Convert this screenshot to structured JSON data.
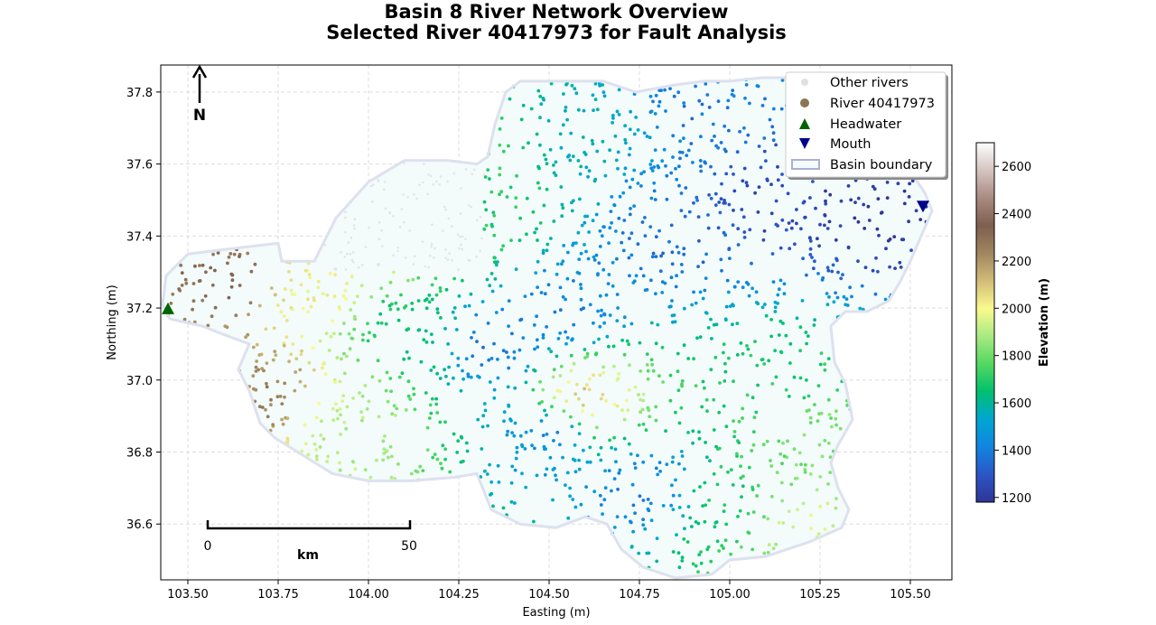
{
  "chart_data": {
    "type": "scatter",
    "title_line1": "Basin 8 River Network Overview",
    "title_line2": "Selected River 40417973 for Fault Analysis",
    "xlabel": "Easting (m)",
    "ylabel": "Northing (m)",
    "xlim": [
      103.425,
      105.615
    ],
    "ylim": [
      36.445,
      37.875
    ],
    "xticks": [
      103.5,
      103.75,
      104.0,
      104.25,
      104.5,
      104.75,
      105.0,
      105.25,
      105.5
    ],
    "xtick_labels": [
      "103.50",
      "103.75",
      "104.00",
      "104.25",
      "104.50",
      "104.75",
      "105.00",
      "105.25",
      "105.50"
    ],
    "yticks": [
      36.6,
      36.8,
      37.0,
      37.2,
      37.4,
      37.6,
      37.8
    ],
    "ytick_labels": [
      "36.6",
      "36.8",
      "37.0",
      "37.2",
      "37.4",
      "37.6",
      "37.8"
    ],
    "grid": true,
    "legend_position": "top-right",
    "legend": {
      "other_rivers": "Other rivers",
      "selected_river": "River 40417973",
      "headwater": "Headwater",
      "mouth": "Mouth",
      "basin_boundary": "Basin boundary"
    },
    "colorbar": {
      "label": "Elevation (m)",
      "range": [
        1180,
        2700
      ],
      "ticks": [
        1200,
        1400,
        1600,
        1800,
        2000,
        2200,
        2400,
        2600
      ],
      "tick_labels": [
        "1200",
        "1400",
        "1600",
        "1800",
        "2000",
        "2200",
        "2400",
        "2600"
      ],
      "colors": [
        "#2f3595",
        "#2b56c6",
        "#1185e0",
        "#00a6d1",
        "#00c06e",
        "#54d860",
        "#a8ea82",
        "#fafa8e",
        "#d2bc78",
        "#a08660",
        "#7f5e50",
        "#a98a80",
        "#d4c4c0",
        "#fefefe"
      ]
    },
    "north_arrow_label": "N",
    "scale_bar": {
      "start_label": "0",
      "end_label": "50",
      "unit_label": "km"
    },
    "headwater": {
      "x": 103.445,
      "y": 37.198
    },
    "mouth": {
      "x": 105.535,
      "y": 37.483
    },
    "basin_boundary": [
      [
        103.43,
        37.21
      ],
      [
        103.44,
        37.29
      ],
      [
        103.5,
        37.35
      ],
      [
        103.58,
        37.36
      ],
      [
        103.75,
        37.38
      ],
      [
        103.76,
        37.33
      ],
      [
        103.85,
        37.33
      ],
      [
        103.91,
        37.45
      ],
      [
        104.0,
        37.55
      ],
      [
        104.1,
        37.61
      ],
      [
        104.22,
        37.61
      ],
      [
        104.3,
        37.6
      ],
      [
        104.33,
        37.62
      ],
      [
        104.35,
        37.71
      ],
      [
        104.38,
        37.8
      ],
      [
        104.42,
        37.83
      ],
      [
        104.48,
        37.83
      ],
      [
        104.57,
        37.83
      ],
      [
        104.65,
        37.83
      ],
      [
        104.74,
        37.8
      ],
      [
        104.85,
        37.82
      ],
      [
        104.93,
        37.83
      ],
      [
        105.0,
        37.83
      ],
      [
        105.09,
        37.84
      ],
      [
        105.18,
        37.84
      ],
      [
        105.3,
        37.8
      ],
      [
        105.35,
        37.74
      ],
      [
        105.4,
        37.66
      ],
      [
        105.43,
        37.6
      ],
      [
        105.5,
        37.58
      ],
      [
        105.54,
        37.52
      ],
      [
        105.56,
        37.47
      ],
      [
        105.53,
        37.4
      ],
      [
        105.5,
        37.33
      ],
      [
        105.47,
        37.27
      ],
      [
        105.44,
        37.22
      ],
      [
        105.38,
        37.19
      ],
      [
        105.32,
        37.19
      ],
      [
        105.28,
        37.15
      ],
      [
        105.29,
        37.05
      ],
      [
        105.32,
        36.99
      ],
      [
        105.34,
        36.89
      ],
      [
        105.3,
        36.82
      ],
      [
        105.28,
        36.77
      ],
      [
        105.3,
        36.7
      ],
      [
        105.33,
        36.64
      ],
      [
        105.31,
        36.59
      ],
      [
        105.22,
        36.55
      ],
      [
        105.1,
        36.51
      ],
      [
        105.0,
        36.5
      ],
      [
        104.95,
        36.46
      ],
      [
        104.85,
        36.45
      ],
      [
        104.76,
        36.48
      ],
      [
        104.7,
        36.53
      ],
      [
        104.66,
        36.6
      ],
      [
        104.6,
        36.62
      ],
      [
        104.52,
        36.59
      ],
      [
        104.42,
        36.6
      ],
      [
        104.34,
        36.64
      ],
      [
        104.3,
        36.74
      ],
      [
        104.24,
        36.73
      ],
      [
        104.12,
        36.72
      ],
      [
        104.0,
        36.72
      ],
      [
        103.9,
        36.74
      ],
      [
        103.82,
        36.79
      ],
      [
        103.74,
        36.84
      ],
      [
        103.7,
        36.88
      ],
      [
        103.67,
        36.97
      ],
      [
        103.64,
        37.03
      ],
      [
        103.67,
        37.1
      ],
      [
        103.59,
        37.13
      ],
      [
        103.54,
        37.15
      ],
      [
        103.45,
        37.17
      ],
      [
        103.43,
        37.21
      ]
    ]
  }
}
